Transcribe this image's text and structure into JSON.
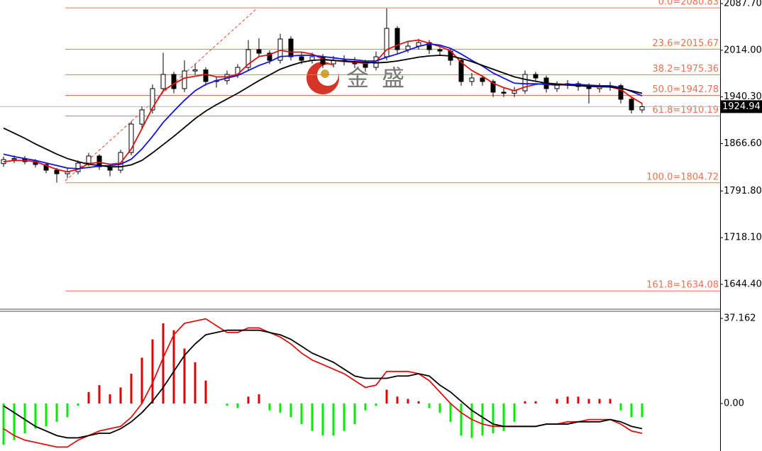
{
  "chart_data": [
    {
      "type": "candlestick",
      "open": [
        1835.0,
        1841.4,
        1843.0,
        1838.1,
        1833.6,
        1824.6,
        1819.0,
        1822.4,
        1835.8,
        1847.0,
        1830.1,
        1824.6,
        1852.6,
        1897.4,
        1919.8,
        1953.4,
        1975.8,
        1953.4,
        1981.3,
        1983.0,
        1964.6,
        1966.0,
        1975.8,
        1986.9,
        2014.9,
        2009.3,
        1998.1,
        2031.7,
        2003.7,
        1998.1,
        2003.7,
        1992.5,
        1998.1,
        1996.0,
        1992.5,
        1986.9,
        2003.7,
        2048.5,
        2014.9,
        2020.5,
        2026.1,
        2014.9,
        2012.7,
        1998.1,
        1964.6,
        1970.2,
        1964.6,
        1947.8,
        1946.0,
        1950.0,
        1975.8,
        1970.2,
        1953.4,
        1958.9,
        1961.2,
        1956.7,
        1953.4,
        1956.7,
        1958.0,
        1936.6,
        1919.8
      ],
      "high": [
        1846,
        1848,
        1847,
        1842,
        1837,
        1828,
        1827,
        1840,
        1852,
        1850,
        1834,
        1857,
        1902,
        1925,
        1960,
        2010,
        1980,
        1998,
        1992,
        1987,
        1972,
        1982,
        1992,
        2030,
        2033,
        2014,
        2040,
        2036,
        2010,
        2010,
        2008,
        2005,
        2006,
        2003,
        1999,
        2012,
        2080,
        2052,
        2028,
        2032,
        2030,
        2020,
        2016,
        2002,
        1978,
        1974,
        1968,
        1954,
        1956,
        1982,
        1980,
        1974,
        1965,
        1967,
        1965,
        1962,
        1962,
        1964,
        1961,
        1940,
        1930
      ],
      "low": [
        1830,
        1836,
        1834,
        1829,
        1820,
        1805,
        1812,
        1818,
        1831,
        1825,
        1815,
        1820,
        1848,
        1892,
        1914,
        1948,
        1946,
        1948,
        1975,
        1958,
        1955,
        1960,
        1970,
        1982,
        2003,
        1992,
        1993,
        1998,
        1992,
        1993,
        1986,
        1987,
        1990,
        1986,
        1980,
        1982,
        1998,
        2008,
        2010,
        2015,
        2008,
        2006,
        1990,
        1958,
        1958,
        1958,
        1940,
        1940,
        1940,
        1945,
        1964,
        1947,
        1948,
        1953,
        1950,
        1930,
        1947,
        1950,
        1930,
        1914,
        1915
      ],
      "close": [
        1841.4,
        1843.0,
        1838.1,
        1833.6,
        1824.6,
        1819.0,
        1822.4,
        1835.8,
        1847.0,
        1830.1,
        1824.6,
        1852.6,
        1897.4,
        1919.8,
        1953.4,
        1975.8,
        1953.4,
        1981.3,
        1983.0,
        1964.6,
        1966.0,
        1975.8,
        1986.9,
        2014.9,
        2009.3,
        1998.1,
        2031.7,
        2003.7,
        1998.1,
        2003.7,
        1992.5,
        1998.1,
        1996.0,
        1992.5,
        1986.9,
        2003.7,
        2048.5,
        2014.9,
        2020.5,
        2026.1,
        2014.9,
        2012.7,
        1998.1,
        1964.6,
        1970.2,
        1964.6,
        1947.8,
        1946.0,
        1950.0,
        1975.8,
        1970.2,
        1953.4,
        1958.9,
        1961.2,
        1956.7,
        1953.4,
        1956.7,
        1958.0,
        1936.6,
        1919.8,
        1924.9
      ],
      "up_color": "#ffffff",
      "down_color": "#000000",
      "series": [
        {
          "color": "#e01010",
          "values": [
            1838,
            1840,
            1840,
            1838,
            1832,
            1826,
            1822,
            1826,
            1835,
            1837,
            1834,
            1836,
            1858,
            1890,
            1923,
            1950,
            1961,
            1970,
            1973,
            1976,
            1972,
            1972,
            1976,
            1992,
            2004,
            2007,
            2014,
            2011,
            2011,
            2008,
            2000,
            1998,
            1996,
            1995,
            1993,
            1996,
            2015,
            2022,
            2028,
            2030,
            2025,
            2020,
            2013,
            1995,
            1982,
            1973,
            1962,
            1955,
            1950,
            1956,
            1960,
            1962,
            1961,
            1960,
            1958,
            1957,
            1956,
            1956,
            1952,
            1940,
            1930
          ]
        },
        {
          "color": "#1010e0",
          "values": [
            1850,
            1846,
            1843,
            1840,
            1836,
            1832,
            1828,
            1827,
            1829,
            1831,
            1832,
            1834,
            1842,
            1858,
            1878,
            1900,
            1918,
            1935,
            1950,
            1960,
            1966,
            1970,
            1974,
            1982,
            1990,
            1996,
            2004,
            2005,
            2006,
            2006,
            2004,
            2002,
            2000,
            1999,
            1997,
            1997,
            2003,
            2008,
            2014,
            2020,
            2024,
            2022,
            2017,
            2008,
            1998,
            1989,
            1978,
            1970,
            1962,
            1961,
            1961,
            1960,
            1959,
            1960,
            1960,
            1959,
            1958,
            1958,
            1955,
            1949,
            1942
          ]
        },
        {
          "color": "#000000",
          "values": [
            1891,
            1883,
            1875,
            1866,
            1858,
            1850,
            1843,
            1838,
            1834,
            1832,
            1830,
            1830,
            1833,
            1840,
            1852,
            1865,
            1878,
            1892,
            1906,
            1918,
            1928,
            1937,
            1946,
            1956,
            1966,
            1975,
            1984,
            1990,
            1995,
            1998,
            1999,
            1998,
            1997,
            1996,
            1995,
            1994,
            1995,
            1997,
            2000,
            2003,
            2005,
            2006,
            2005,
            2001,
            1996,
            1990,
            1984,
            1978,
            1972,
            1968,
            1965,
            1962,
            1960,
            1959,
            1958,
            1957,
            1957,
            1956,
            1954,
            1950,
            1946
          ]
        }
      ],
      "ylim": [
        1605.2,
        2093.3
      ],
      "yticks": [
        {
          "value": 2087.7,
          "label": "2087.70"
        },
        {
          "value": 2014,
          "label": "2014.00"
        },
        {
          "value": 1940.3,
          "label": "1940.30"
        },
        {
          "value": 1866.6,
          "label": "1866.60"
        },
        {
          "value": 1791.8,
          "label": "1791.80"
        },
        {
          "value": 1718.1,
          "label": "1718.10"
        },
        {
          "value": 1644.4,
          "label": "1644.40"
        }
      ],
      "levels": [
        {
          "value": 2080.83,
          "label": "0.0=2080.83"
        },
        {
          "value": 2015.67,
          "label": "23.6=2015.67"
        },
        {
          "value": 1975.36,
          "label": "38.2=1975.36"
        },
        {
          "value": 1942.78,
          "label": "50.0=1942.78"
        },
        {
          "value": 1910.19,
          "label": "61.8=1910.19"
        },
        {
          "value": 1804.72,
          "label": "100.0=1804.72"
        },
        {
          "value": 1634.08,
          "label": "161.8=1634.08"
        }
      ],
      "level_color": "#f07050",
      "current_price": 1924.94,
      "watermark": "金 盛"
    },
    {
      "type": "macd",
      "values": [
        -18,
        -16,
        -13,
        -11,
        -10,
        -8,
        -6,
        -1,
        5,
        8,
        4,
        7,
        13,
        20,
        28,
        35,
        32,
        24,
        18,
        10,
        0,
        -1,
        -2,
        3,
        4,
        -3,
        -4,
        -6,
        -9,
        -12,
        -14,
        -14,
        -12,
        -9,
        -3,
        -1,
        6,
        3,
        2,
        1,
        -2,
        -4,
        -8,
        -14,
        -15,
        -14,
        -13,
        -12,
        -8,
        1,
        1,
        0,
        2,
        3,
        3,
        2,
        2,
        2,
        -3,
        -6,
        -6
      ],
      "positive_color": "#e00000",
      "negative_color": "#00ee00",
      "series": [
        {
          "color": "#e01010",
          "values": [
            -11,
            -14,
            -16,
            -17,
            -18,
            -19,
            -19,
            -16,
            -14,
            -12,
            -11,
            -10,
            -6,
            0,
            9,
            20,
            30,
            35,
            36,
            37,
            34,
            31,
            31,
            33,
            33,
            31,
            29,
            26,
            22,
            19,
            17,
            15,
            13,
            10,
            7,
            8,
            14,
            14,
            14,
            13,
            10,
            5,
            0,
            -4,
            -7,
            -9,
            -10,
            -10,
            -10,
            -10,
            -10,
            -9,
            -9,
            -8,
            -8,
            -7,
            -7,
            -7,
            -9,
            -12,
            -13
          ]
        },
        {
          "color": "#000000",
          "values": [
            -1,
            -4,
            -7,
            -10,
            -12,
            -14,
            -15,
            -15,
            -14,
            -13,
            -13,
            -11,
            -8,
            -4,
            1,
            7,
            14,
            21,
            26,
            30,
            31,
            32,
            32,
            32,
            32,
            31,
            30,
            28,
            25,
            22,
            20,
            18,
            15,
            12,
            11,
            11,
            11,
            12,
            12,
            13,
            12,
            8,
            5,
            1,
            -3,
            -6,
            -9,
            -10,
            -10,
            -10,
            -10,
            -9,
            -9,
            -9,
            -8,
            -8,
            -8,
            -7,
            -8,
            -10,
            -11
          ]
        }
      ],
      "ylim": [
        -20.75,
        39.95
      ],
      "yticks": [
        37.162,
        {
          "value": 0,
          "label": "0.00"
        }
      ]
    }
  ]
}
